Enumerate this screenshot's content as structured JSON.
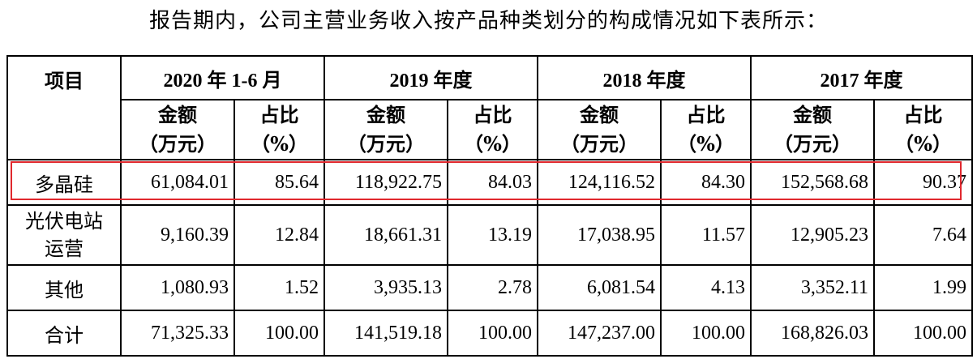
{
  "intro_text": "报告期内，公司主营业务收入按产品种类划分的构成情况如下表所示：",
  "table": {
    "item_header": "项目",
    "periods": [
      "2020 年 1-6 月",
      "2019 年度",
      "2018 年度",
      "2017 年度"
    ],
    "amount_header_line1": "金额",
    "amount_header_line2": "（万元）",
    "ratio_header_line1": "占比",
    "ratio_header_line2": "（%）",
    "rows": [
      {
        "label": "多晶硅",
        "values": [
          "61,084.01",
          "85.64",
          "118,922.75",
          "84.03",
          "124,116.52",
          "84.30",
          "152,568.68",
          "90.37"
        ]
      },
      {
        "label_line1": "光伏电站",
        "label_line2": "运营",
        "values": [
          "9,160.39",
          "12.84",
          "18,661.31",
          "13.19",
          "17,038.95",
          "11.57",
          "12,905.23",
          "7.64"
        ]
      },
      {
        "label": "其他",
        "values": [
          "1,080.93",
          "1.52",
          "3,935.13",
          "2.78",
          "6,081.54",
          "4.13",
          "3,352.11",
          "1.99"
        ]
      },
      {
        "label": "合计",
        "values": [
          "71,325.33",
          "100.00",
          "141,519.18",
          "100.00",
          "147,237.00",
          "100.00",
          "168,826.03",
          "100.00"
        ]
      }
    ]
  },
  "highlight_color": "#e0282e"
}
